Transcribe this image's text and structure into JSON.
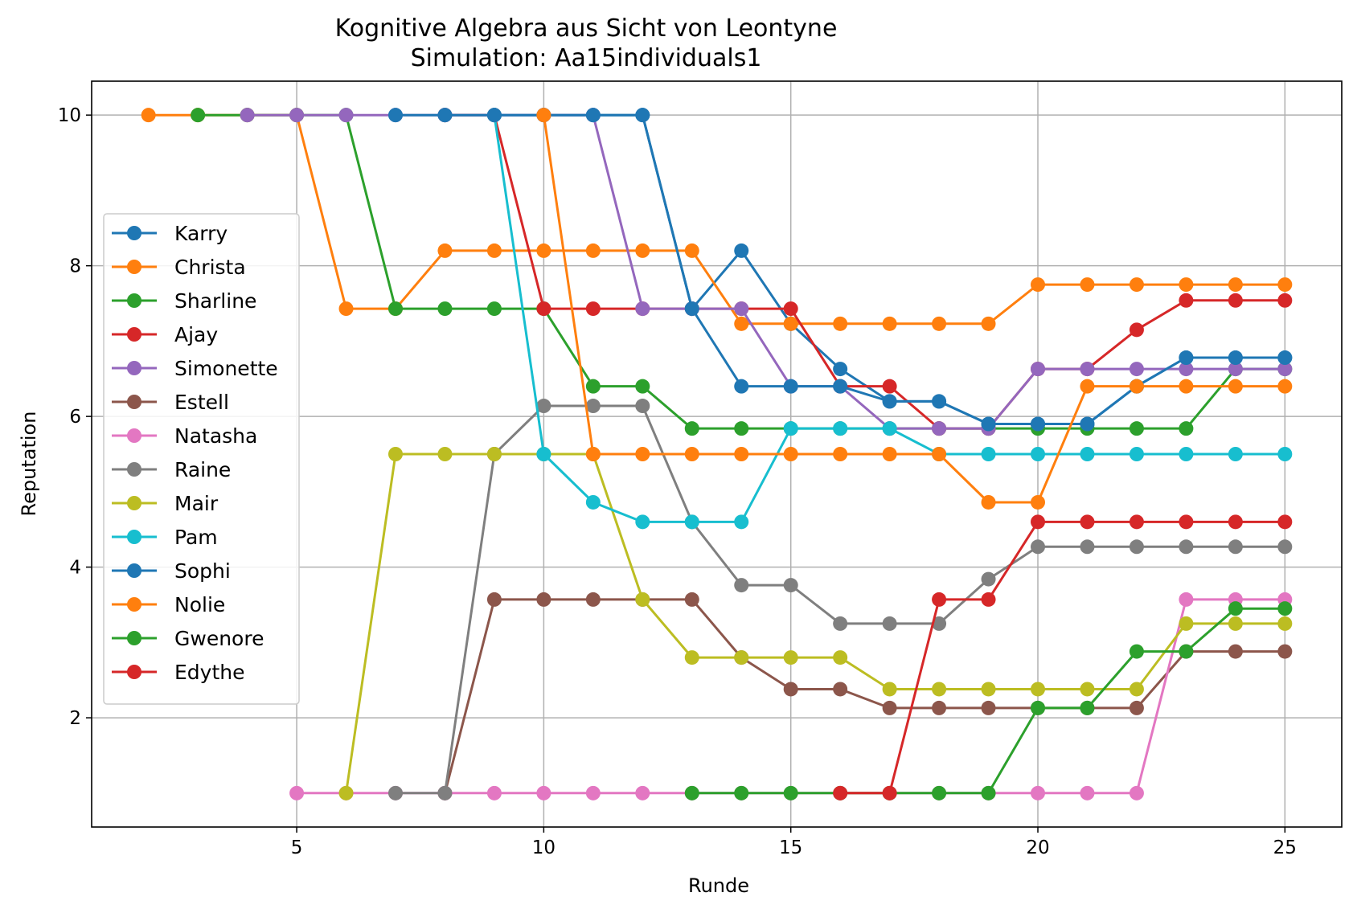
{
  "chart_data": {
    "type": "line",
    "title": "Kognitive Algebra aus Sicht von Leontyne",
    "subtitle": "Simulation: Aa15individuals1",
    "xlabel": "Runde",
    "ylabel": "Reputation",
    "xlim": [
      0.85,
      26.15
    ],
    "ylim": [
      0.55,
      10.45
    ],
    "xticks": [
      5,
      10,
      15,
      20,
      25
    ],
    "yticks": [
      2,
      4,
      6,
      8,
      10
    ],
    "grid": true,
    "legend_position": "center-left",
    "series": [
      {
        "name": "Karry",
        "color": "#1f77b4",
        "x": [
          8,
          9,
          10,
          11,
          12,
          13,
          14,
          15,
          16,
          17,
          18,
          19,
          20,
          21,
          22,
          23,
          24,
          25
        ],
        "y": [
          10,
          10,
          10,
          10,
          10,
          7.43,
          8.2,
          7.23,
          6.63,
          6.2,
          6.2,
          5.9,
          5.9,
          5.9,
          6.4,
          6.78,
          6.78,
          6.78
        ]
      },
      {
        "name": "Christa",
        "color": "#ff7f0e",
        "x": [
          2,
          3,
          4,
          5,
          6,
          7,
          8,
          9,
          10,
          11,
          12,
          13,
          14,
          15,
          16,
          17,
          18,
          19,
          20,
          21,
          22,
          23,
          24,
          25
        ],
        "y": [
          10,
          10,
          10,
          10,
          7.43,
          7.43,
          8.2,
          8.2,
          8.2,
          8.2,
          8.2,
          8.2,
          7.23,
          7.23,
          7.23,
          7.23,
          7.23,
          7.23,
          7.75,
          7.75,
          7.75,
          7.75,
          7.75,
          7.75
        ]
      },
      {
        "name": "Sharline",
        "color": "#2ca02c",
        "x": [
          3,
          4,
          5,
          6,
          7,
          8,
          9,
          10,
          11,
          12,
          13,
          14,
          15,
          16,
          17,
          18,
          19,
          20,
          21,
          22,
          23,
          24,
          25
        ],
        "y": [
          10,
          10,
          10,
          10,
          7.43,
          7.43,
          7.43,
          7.43,
          6.4,
          6.4,
          5.84,
          5.84,
          5.84,
          5.84,
          5.84,
          5.84,
          5.84,
          5.84,
          5.84,
          5.84,
          5.84,
          6.63,
          6.63
        ]
      },
      {
        "name": "Ajay",
        "color": "#d62728",
        "x": [
          8,
          9,
          10,
          11,
          12,
          13,
          14,
          15,
          16,
          17,
          18,
          19,
          20,
          21,
          22,
          23,
          24,
          25
        ],
        "y": [
          10,
          10,
          7.43,
          7.43,
          7.43,
          7.43,
          7.43,
          7.43,
          6.4,
          6.4,
          5.84,
          5.84,
          6.63,
          6.63,
          7.15,
          7.54,
          7.54,
          7.54
        ]
      },
      {
        "name": "Simonette",
        "color": "#9467bd",
        "x": [
          4,
          5,
          6,
          7,
          8,
          9,
          10,
          11,
          12,
          13,
          14,
          15,
          16,
          17,
          18,
          19,
          20,
          21,
          22,
          23,
          24,
          25
        ],
        "y": [
          10,
          10,
          10,
          10,
          10,
          10,
          10,
          10,
          7.43,
          7.43,
          7.43,
          6.4,
          6.4,
          5.84,
          5.84,
          5.84,
          6.63,
          6.63,
          6.63,
          6.63,
          6.63,
          6.63
        ]
      },
      {
        "name": "Estell",
        "color": "#8c564b",
        "x": [
          8,
          9,
          10,
          11,
          12,
          13,
          14,
          15,
          16,
          17,
          18,
          19,
          20,
          21,
          22,
          23,
          24,
          25
        ],
        "y": [
          1,
          3.57,
          3.57,
          3.57,
          3.57,
          3.57,
          2.8,
          2.38,
          2.38,
          2.13,
          2.13,
          2.13,
          2.13,
          2.13,
          2.13,
          2.88,
          2.88,
          2.88
        ]
      },
      {
        "name": "Natasha",
        "color": "#e377c2",
        "x": [
          5,
          6,
          7,
          8,
          9,
          10,
          11,
          12,
          13,
          14,
          15,
          16,
          17,
          18,
          19,
          20,
          21,
          22,
          23,
          24,
          25
        ],
        "y": [
          1,
          1,
          1,
          1,
          1,
          1,
          1,
          1,
          1,
          1,
          1,
          1,
          1,
          1,
          1,
          1,
          1,
          1,
          3.57,
          3.57,
          3.57
        ]
      },
      {
        "name": "Raine",
        "color": "#7f7f7f",
        "x": [
          7,
          8,
          9,
          10,
          11,
          12,
          13,
          14,
          15,
          16,
          17,
          18,
          19,
          20,
          21,
          22,
          23,
          24,
          25
        ],
        "y": [
          1,
          1,
          5.5,
          6.14,
          6.14,
          6.14,
          4.6,
          3.76,
          3.76,
          3.25,
          3.25,
          3.25,
          3.84,
          4.27,
          4.27,
          4.27,
          4.27,
          4.27,
          4.27
        ]
      },
      {
        "name": "Mair",
        "color": "#bcbd22",
        "x": [
          6,
          7,
          8,
          9,
          10,
          11,
          12,
          13,
          14,
          15,
          16,
          17,
          18,
          19,
          20,
          21,
          22,
          23,
          24,
          25
        ],
        "y": [
          1,
          5.5,
          5.5,
          5.5,
          5.5,
          5.5,
          3.57,
          2.8,
          2.8,
          2.8,
          2.8,
          2.38,
          2.38,
          2.38,
          2.38,
          2.38,
          2.38,
          3.25,
          3.25,
          3.25
        ]
      },
      {
        "name": "Pam",
        "color": "#17becf",
        "x": [
          9,
          10,
          11,
          12,
          13,
          14,
          15,
          16,
          17,
          18,
          19,
          20,
          21,
          22,
          23,
          24,
          25
        ],
        "y": [
          10,
          5.5,
          4.86,
          4.6,
          4.6,
          4.6,
          5.84,
          5.84,
          5.84,
          5.5,
          5.5,
          5.5,
          5.5,
          5.5,
          5.5,
          5.5,
          5.5
        ]
      },
      {
        "name": "Sophi",
        "color": "#1f77b4",
        "x": [
          7,
          8,
          9,
          10,
          11,
          12,
          13,
          14,
          15,
          16,
          17,
          18,
          19,
          20,
          21,
          22,
          23,
          24,
          25
        ],
        "y": [
          10,
          10,
          10,
          10,
          10,
          10,
          7.43,
          6.4,
          6.4,
          6.4,
          6.2,
          6.2,
          5.9,
          5.9,
          5.9,
          6.4,
          6.78,
          6.78,
          6.78
        ]
      },
      {
        "name": "Nolie",
        "color": "#ff7f0e",
        "x": [
          10,
          11,
          12,
          13,
          14,
          15,
          16,
          17,
          18,
          19,
          20,
          21,
          22,
          23,
          24,
          25
        ],
        "y": [
          10,
          5.5,
          5.5,
          5.5,
          5.5,
          5.5,
          5.5,
          5.5,
          5.5,
          4.86,
          4.86,
          6.4,
          6.4,
          6.4,
          6.4,
          6.4
        ]
      },
      {
        "name": "Gwenore",
        "color": "#2ca02c",
        "x": [
          13,
          14,
          15,
          16,
          17,
          18,
          19,
          20,
          21,
          22,
          23,
          24,
          25
        ],
        "y": [
          1,
          1,
          1,
          1,
          1,
          1,
          1,
          2.13,
          2.13,
          2.88,
          2.88,
          3.45,
          3.45
        ]
      },
      {
        "name": "Edythe",
        "color": "#d62728",
        "x": [
          16,
          17,
          18,
          19,
          20,
          21,
          22,
          23,
          24,
          25
        ],
        "y": [
          1,
          1,
          3.57,
          3.57,
          4.6,
          4.6,
          4.6,
          4.6,
          4.6,
          4.6
        ]
      }
    ]
  }
}
